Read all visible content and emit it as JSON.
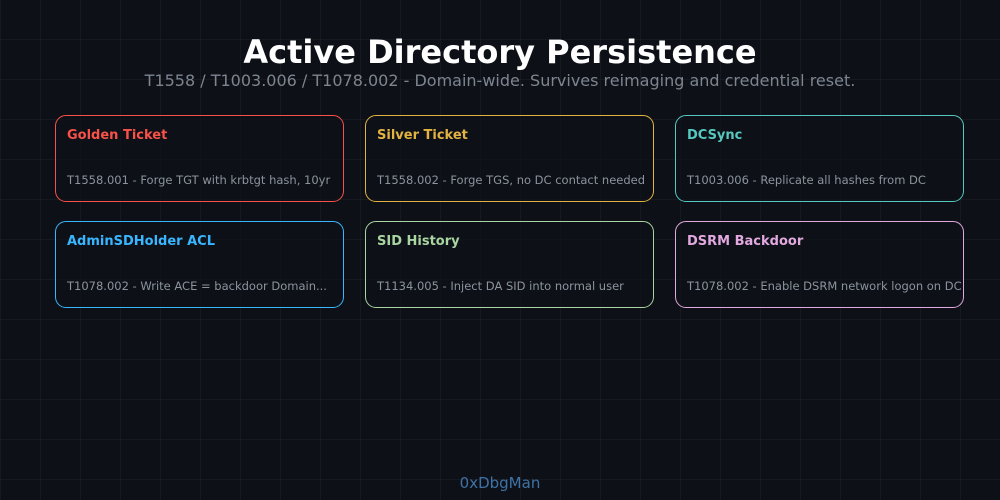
{
  "header": {
    "title": "Active Directory Persistence",
    "subtitle": "T1558 / T1003.006 / T1078.002 - Domain-wide. Survives reimaging and credential reset."
  },
  "cards": [
    {
      "title": "Golden Ticket",
      "description": "T1558.001 - Forge TGT with krbtgt hash, 10yr",
      "color": "#f85149"
    },
    {
      "title": "Silver Ticket",
      "description": "T1558.002 - Forge TGS, no DC contact needed",
      "color": "#e3b341"
    },
    {
      "title": "DCSync",
      "description": "T1003.006 - Replicate all hashes from DC",
      "color": "#56c8c0"
    },
    {
      "title": "AdminSDHolder ACL",
      "description": "T1078.002 - Write ACE = backdoor Domain...",
      "color": "#38b6ff"
    },
    {
      "title": "SID History",
      "description": "T1134.005 - Inject DA SID into normal user",
      "color": "#a8d5a2"
    },
    {
      "title": "DSRM Backdoor",
      "description": "T1078.002 - Enable DSRM network logon on DC",
      "color": "#e2a8e0"
    }
  ],
  "footer": {
    "credit": "0xDbgMan"
  }
}
